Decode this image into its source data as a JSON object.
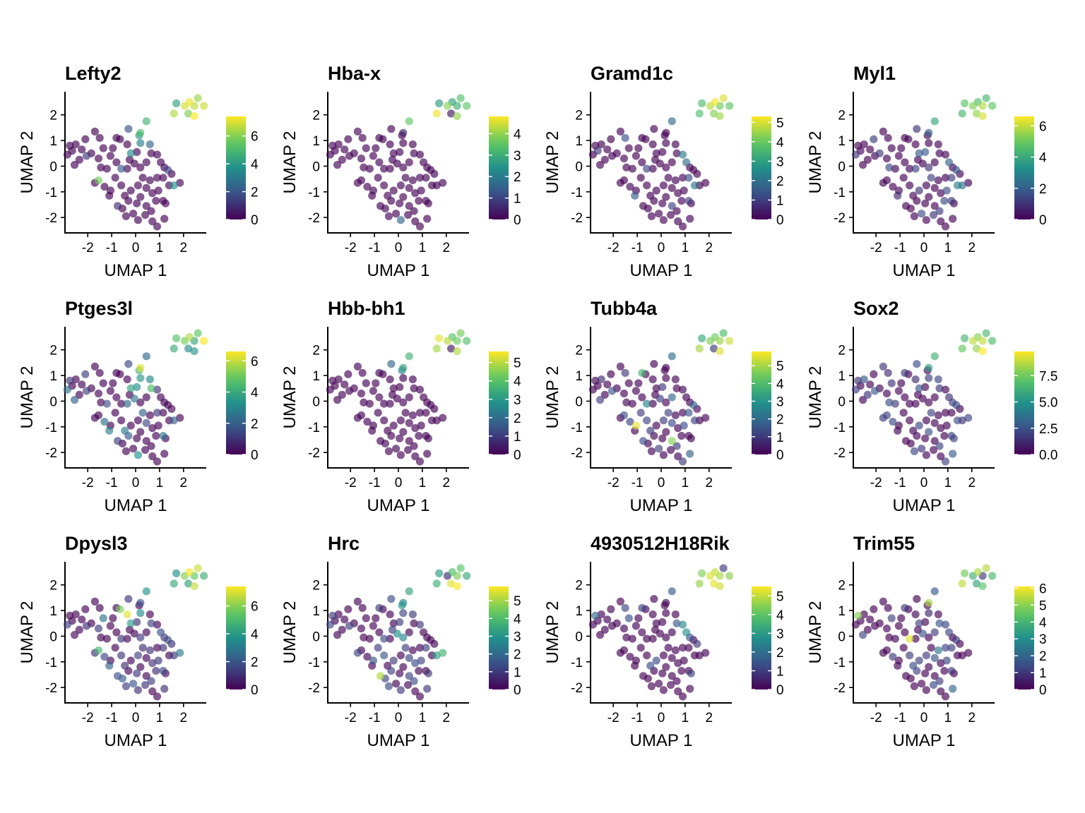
{
  "chart_data": {
    "type": "scatter",
    "xlabel": "UMAP 1",
    "ylabel": "UMAP 2",
    "xticks": [
      -2,
      -1,
      0,
      1,
      2
    ],
    "yticks": [
      -2,
      -1,
      0,
      1,
      2
    ],
    "xlim": [
      -2.95,
      2.95
    ],
    "ylim": [
      -2.6,
      2.9
    ],
    "colormap": "viridis",
    "colormap_stops": [
      "#440154",
      "#3b528b",
      "#21918c",
      "#5ec962",
      "#fde725"
    ],
    "point_opacity": 0.65,
    "cells": [
      [
        2.25,
        2.5
      ],
      [
        2.6,
        2.65
      ],
      [
        2.85,
        2.35
      ],
      [
        2.45,
        2.35
      ],
      [
        1.7,
        2.45
      ],
      [
        2.05,
        2.35
      ],
      [
        2.2,
        2.05
      ],
      [
        1.6,
        2.05
      ],
      [
        2.45,
        1.95
      ],
      [
        0.45,
        1.75
      ],
      [
        0.2,
        1.3
      ],
      [
        -0.3,
        1.45
      ],
      [
        0.15,
        1.2
      ],
      [
        0.2,
        0.9
      ],
      [
        0.6,
        0.85
      ],
      [
        -0.65,
        1.05
      ],
      [
        -0.35,
        0.85
      ],
      [
        0.05,
        0.55
      ],
      [
        -0.2,
        0.5
      ],
      [
        0.65,
        0.5
      ],
      [
        0.9,
        0.45
      ],
      [
        1.05,
        0.15
      ],
      [
        1.35,
        -0.15
      ],
      [
        1.6,
        -0.75
      ],
      [
        1.85,
        -0.65
      ],
      [
        1.15,
        -0.45
      ],
      [
        0.9,
        -0.45
      ],
      [
        1.4,
        -0.75
      ],
      [
        1.15,
        -1.35
      ],
      [
        1.25,
        -1.45
      ],
      [
        0.85,
        -1.35
      ],
      [
        0.45,
        -1.55
      ],
      [
        1.2,
        -2.05
      ],
      [
        0.9,
        -2.35
      ],
      [
        0.7,
        -2.15
      ],
      [
        0.4,
        -1.9
      ],
      [
        0.1,
        -2.1
      ],
      [
        -0.1,
        -1.85
      ],
      [
        -0.4,
        -1.95
      ],
      [
        -0.55,
        -1.65
      ],
      [
        -0.3,
        -1.35
      ],
      [
        0.05,
        -1.45
      ],
      [
        -0.75,
        -1.55
      ],
      [
        -1.1,
        -1.15
      ],
      [
        -1.05,
        -0.95
      ],
      [
        -1.3,
        -0.8
      ],
      [
        -1.55,
        -0.55
      ],
      [
        -1.7,
        -0.65
      ],
      [
        -1.2,
        -0.1
      ],
      [
        -1.45,
        -0.05
      ],
      [
        -1.55,
        0.3
      ],
      [
        -1.85,
        0.5
      ],
      [
        -2.05,
        0.4
      ],
      [
        -2.35,
        0.25
      ],
      [
        -2.55,
        0.05
      ],
      [
        -2.85,
        0.45
      ],
      [
        -2.65,
        0.6
      ],
      [
        -2.75,
        0.8
      ],
      [
        -2.5,
        0.85
      ],
      [
        -2.25,
        0.65
      ],
      [
        -2.1,
        1.05
      ],
      [
        -1.7,
        1.35
      ],
      [
        -1.5,
        1.1
      ],
      [
        -1.35,
        0.7
      ],
      [
        -1.05,
        0.4
      ],
      [
        -0.8,
        0.15
      ],
      [
        -0.6,
        -0.1
      ],
      [
        -0.35,
        -0.1
      ],
      [
        -0.05,
        0.1
      ],
      [
        0.2,
        -0.05
      ],
      [
        0.45,
        0.15
      ],
      [
        0.3,
        -0.45
      ],
      [
        0.6,
        -0.55
      ],
      [
        0.45,
        -0.85
      ],
      [
        0.1,
        -0.75
      ],
      [
        -0.2,
        -0.95
      ],
      [
        -0.45,
        -1.15
      ],
      [
        -0.6,
        -0.75
      ],
      [
        -0.85,
        -0.45
      ],
      [
        -0.95,
        0.7
      ],
      [
        -0.8,
        1.1
      ],
      [
        0.7,
        -1.05
      ],
      [
        0.95,
        -0.95
      ],
      [
        0.2,
        -1.2
      ],
      [
        0.65,
        -1.75
      ],
      [
        -0.25,
        0.25
      ],
      [
        1.2,
        -0.05
      ],
      [
        1.5,
        -0.3
      ]
    ],
    "panels": [
      {
        "title": "Lefty2",
        "cbar_max": 7.4,
        "cbar_ticks": [
          0,
          2,
          4,
          6
        ],
        "cbar_labels": [
          "0",
          "2",
          "4",
          "6"
        ],
        "high": {
          "0": 7.2,
          "1": 6.2,
          "2": 6.8,
          "3": 6.6,
          "4": 4.2,
          "5": 6.9,
          "6": 5.9,
          "7": 6.5,
          "8": 7.4,
          "9": 4.8,
          "10": 5.1,
          "11": 1.8,
          "12": 3.9,
          "13": 3.2,
          "14": 2.4,
          "18": 3.5,
          "22": 1.5,
          "23": 3.8,
          "42": 1.0,
          "46": 5.8,
          "52": 1.2,
          "66": 2.1
        }
      },
      {
        "title": "Hba-x",
        "cbar_max": 4.8,
        "cbar_ticks": [
          0,
          1,
          2,
          3,
          4
        ],
        "cbar_labels": [
          "0",
          "1",
          "2",
          "3",
          "4"
        ],
        "high": {
          "0": 2.7,
          "1": 3.4,
          "2": 3.5,
          "3": 3.0,
          "4": 2.6,
          "5": 3.9,
          "6": 0.3,
          "7": 4.7,
          "8": 4.0,
          "9": 3.6,
          "10": 0.5,
          "36": 1.6
        }
      },
      {
        "title": "Gramd1c",
        "cbar_max": 5.3,
        "cbar_ticks": [
          0,
          1,
          2,
          3,
          4,
          5
        ],
        "cbar_labels": [
          "0",
          "1",
          "2",
          "3",
          "4",
          "5"
        ],
        "high": {
          "0": 5.2,
          "1": 5.0,
          "2": 3.9,
          "3": 4.1,
          "4": 3.6,
          "5": 4.7,
          "6": 4.3,
          "7": 3.7,
          "8": 4.5,
          "9": 1.8,
          "20": 2.2,
          "21": 1.9,
          "25": 1.2,
          "27": 2.1,
          "28": 1.0,
          "31": 1.1,
          "43": 1.5,
          "56": 0.9,
          "62": 1.3,
          "66": 1.1
        }
      },
      {
        "title": "Myl1",
        "cbar_max": 6.6,
        "cbar_ticks": [
          0,
          2,
          4,
          6
        ],
        "cbar_labels": [
          "0",
          "2",
          "4",
          "6"
        ],
        "high": {
          "0": 4.6,
          "1": 4.4,
          "2": 4.9,
          "3": 5.8,
          "4": 4.8,
          "5": 5.3,
          "6": 5.5,
          "7": 4.4,
          "8": 6.2,
          "9": 3.9,
          "10": 1.9,
          "11": 1.0,
          "17": 1.9,
          "18": 1.8,
          "21": 2.1,
          "22": 1.8,
          "23": 2.3,
          "25": 1.2,
          "27": 2.8,
          "28": 1.1,
          "30": 1.5,
          "35": 1.0,
          "37": 1.5,
          "43": 0.8,
          "49": 1.5,
          "51": 1.1,
          "55": 1.0,
          "60": 1.2,
          "67": 1.4,
          "69": 1.0,
          "71": 1.3,
          "75": 1.0,
          "82": 1.6,
          "84": 1.1
        }
      },
      {
        "title": "Ptges3l",
        "cbar_max": 6.6,
        "cbar_ticks": [
          0,
          2,
          4,
          6
        ],
        "cbar_labels": [
          "0",
          "2",
          "4",
          "6"
        ],
        "high": {
          "0": 5.8,
          "1": 4.9,
          "2": 6.6,
          "3": 3.9,
          "4": 4.7,
          "5": 5.2,
          "6": 3.2,
          "7": 4.1,
          "8": 3.4,
          "9": 2.2,
          "10": 6.3,
          "11": 1.4,
          "12": 4.3,
          "13": 3.5,
          "14": 3.1,
          "17": 3.2,
          "18": 3.8,
          "19": 4.5,
          "20": 1.0,
          "23": 2.0,
          "26": 1.1,
          "28": 2.6,
          "36": 3.3,
          "40": 1.8,
          "42": 1.2,
          "43": 2.9,
          "45": 2.4,
          "48": 1.5,
          "52": 1.2,
          "54": 2.0,
          "55": 2.4,
          "57": 1.0,
          "60": 1.2,
          "67": 2.2,
          "68": 2.6,
          "71": 2.0,
          "73": 1.5,
          "76": 2.7
        }
      },
      {
        "title": "Hbb-bh1",
        "cbar_max": 5.6,
        "cbar_ticks": [
          0,
          1,
          2,
          3,
          4,
          5
        ],
        "cbar_labels": [
          "0",
          "1",
          "2",
          "3",
          "4",
          "5"
        ],
        "high": {
          "0": 4.0,
          "1": 4.4,
          "2": 3.9,
          "3": 4.3,
          "4": 5.4,
          "5": 5.0,
          "6": 0.4,
          "7": 4.8,
          "8": 4.9,
          "9": 3.6,
          "10": 3.2,
          "11": 1.8,
          "12": 2.4
        }
      },
      {
        "title": "Tubb4a",
        "cbar_max": 5.8,
        "cbar_ticks": [
          0,
          1,
          2,
          3,
          4,
          5
        ],
        "cbar_labels": [
          "0",
          "1",
          "2",
          "3",
          "4",
          "5"
        ],
        "high": {
          "0": 4.5,
          "1": 4.0,
          "2": 5.3,
          "3": 4.9,
          "4": 3.5,
          "5": 4.6,
          "6": 1.0,
          "7": 5.0,
          "8": 5.5,
          "9": 2.1,
          "17": 1.0,
          "22": 1.9,
          "25": 1.5,
          "27": 1.2,
          "31": 4.7,
          "32": 1.8,
          "33": 1.0,
          "37": 1.1,
          "42": 1.4,
          "44": 5.6,
          "45": 1.2,
          "46": 1.3,
          "52": 1.5,
          "54": 1.1,
          "58": 0.8,
          "62": 1.0,
          "66": 2.5,
          "68": 1.1,
          "70": 2.0,
          "71": 1.2,
          "73": 1.3,
          "74": 1.0,
          "76": 1.0,
          "77": 1.2,
          "78": 1.1,
          "80": 3.8,
          "82": 1.4,
          "84": 1.0
        }
      },
      {
        "title": "Sox2",
        "cbar_max": 9.8,
        "cbar_ticks": [
          0,
          2.5,
          5.0,
          7.5
        ],
        "cbar_labels": [
          "0.0",
          "2.5",
          "5.0",
          "7.5"
        ],
        "high": {
          "0": 8.0,
          "1": 6.6,
          "2": 6.7,
          "3": 8.9,
          "4": 6.4,
          "5": 8.8,
          "6": 8.2,
          "7": 7.4,
          "8": 9.8,
          "9": 6.3,
          "10": 5.4,
          "11": 2.2,
          "13": 1.8,
          "14": 2.0,
          "16": 1.3,
          "18": 2.5,
          "19": 1.6,
          "21": 1.4,
          "22": 2.1,
          "23": 1.4,
          "24": 2.1,
          "27": 2.3,
          "28": 1.9,
          "29": 2.0,
          "32": 2.8,
          "33": 1.8,
          "37": 1.5,
          "38": 2.0,
          "45": 2.2,
          "46": 2.0,
          "47": 1.6,
          "48": 1.7,
          "49": 2.3,
          "52": 2.7,
          "53": 1.5,
          "55": 1.9,
          "57": 1.4,
          "58": 2.6,
          "61": 1.6,
          "62": 1.2,
          "63": 1.5,
          "71": 2.0,
          "75": 2.1,
          "80": 1.7,
          "83": 2.4,
          "84": 2.0,
          "86": 1.9
        }
      },
      {
        "title": "Dpysl3",
        "cbar_max": 7.4,
        "cbar_ticks": [
          0,
          2,
          4,
          6
        ],
        "cbar_labels": [
          "0",
          "2",
          "4",
          "6"
        ],
        "high": {
          "0": 7.3,
          "1": 6.8,
          "2": 4.6,
          "3": 5.5,
          "4": 3.7,
          "5": 6.0,
          "6": 4.2,
          "7": 4.5,
          "8": 6.7,
          "9": 3.8,
          "10": 1.8,
          "11": 1.2,
          "13": 3.5,
          "15": 5.9,
          "16": 7.1,
          "17": 1.2,
          "18": 4.0,
          "19": 1.5,
          "21": 1.8,
          "22": 1.6,
          "23": 1.2,
          "24": 3.0,
          "25": 1.1,
          "28": 1.6,
          "30": 1.0,
          "32": 1.1,
          "35": 1.2,
          "36": 1.0,
          "37": 1.9,
          "38": 1.4,
          "39": 2.1,
          "41": 1.3,
          "42": 1.8,
          "43": 2.4,
          "45": 1.5,
          "46": 4.9,
          "47": 1.1,
          "50": 1.3,
          "52": 1.0,
          "55": 1.4,
          "63": 2.9,
          "66": 1.2,
          "69": 1.3,
          "71": 1.0,
          "72": 1.1,
          "74": 1.5,
          "76": 1.0,
          "77": 1.2,
          "81": 1.1,
          "82": 1.2,
          "84": 1.4,
          "86": 1.3,
          "87": 1.1
        }
      },
      {
        "title": "Hrc",
        "cbar_max": 5.8,
        "cbar_ticks": [
          0,
          1,
          2,
          3,
          4,
          5
        ],
        "cbar_labels": [
          "0",
          "1",
          "2",
          "3",
          "4",
          "5"
        ],
        "high": {
          "0": 4.0,
          "1": 4.2,
          "2": 3.5,
          "3": 4.6,
          "4": 3.1,
          "5": 0.8,
          "6": 5.5,
          "7": 3.6,
          "8": 5.8,
          "9": 3.3,
          "10": 2.6,
          "11": 1.3,
          "12": 3.0,
          "13": 1.2,
          "14": 1.0,
          "17": 1.1,
          "20": 1.0,
          "23": 3.2,
          "24": 3.7,
          "25": 1.1,
          "29": 1.0,
          "31": 1.2,
          "32": 1.0,
          "36": 1.0,
          "38": 1.4,
          "39": 1.2,
          "40": 1.1,
          "42": 5.1,
          "44": 1.5,
          "47": 1.2,
          "52": 1.1,
          "55": 1.3,
          "57": 1.0,
          "66": 1.3,
          "68": 2.8,
          "69": 2.6,
          "71": 1.1,
          "73": 1.2,
          "75": 1.0,
          "77": 1.5,
          "78": 1.1,
          "80": 1.0,
          "81": 1.4,
          "82": 1.2,
          "84": 1.3,
          "85": 1.1
        }
      },
      {
        "title": "4930512H18Rik",
        "cbar_max": 5.5,
        "cbar_ticks": [
          0,
          1,
          2,
          3,
          4,
          5
        ],
        "cbar_labels": [
          "0",
          "1",
          "2",
          "3",
          "4",
          "5"
        ],
        "high": {
          "0": 5.0,
          "1": 1.0,
          "2": 4.5,
          "3": 4.8,
          "4": 4.4,
          "5": 5.2,
          "6": 5.3,
          "7": 4.6,
          "8": 5.1,
          "9": 1.6,
          "19": 1.5,
          "20": 2.5,
          "21": 2.7,
          "29": 1.1,
          "57": 1.9,
          "62": 1.2,
          "63": 1.3,
          "75": 1.2,
          "76": 1.3,
          "80": 1.1,
          "86": 1.4,
          "87": 1.0
        }
      },
      {
        "title": "Trim55",
        "cbar_max": 6.1,
        "cbar_ticks": [
          0,
          1,
          2,
          3,
          4,
          5,
          6
        ],
        "cbar_labels": [
          "0",
          "1",
          "2",
          "3",
          "4",
          "5",
          "6"
        ],
        "high": {
          "0": 5.3,
          "1": 5.4,
          "2": 4.1,
          "3": 1.0,
          "4": 4.8,
          "5": 3.8,
          "6": 3.6,
          "7": 5.5,
          "8": 4.4,
          "9": 1.7,
          "10": 5.3,
          "13": 0.7,
          "18": 1.2,
          "19": 1.5,
          "20": 1.2,
          "21": 1.3,
          "22": 1.0,
          "25": 1.1,
          "26": 1.2,
          "28": 1.0,
          "32": 2.0,
          "35": 1.3,
          "40": 1.2,
          "45": 1.1,
          "54": 1.3,
          "57": 5.0,
          "63": 1.2,
          "66": 5.8,
          "68": 1.5,
          "70": 1.1,
          "72": 2.4,
          "73": 1.6,
          "74": 1.1,
          "75": 1.2,
          "76": 1.4,
          "77": 1.1,
          "80": 1.0,
          "82": 1.3,
          "84": 1.1
        }
      }
    ]
  }
}
